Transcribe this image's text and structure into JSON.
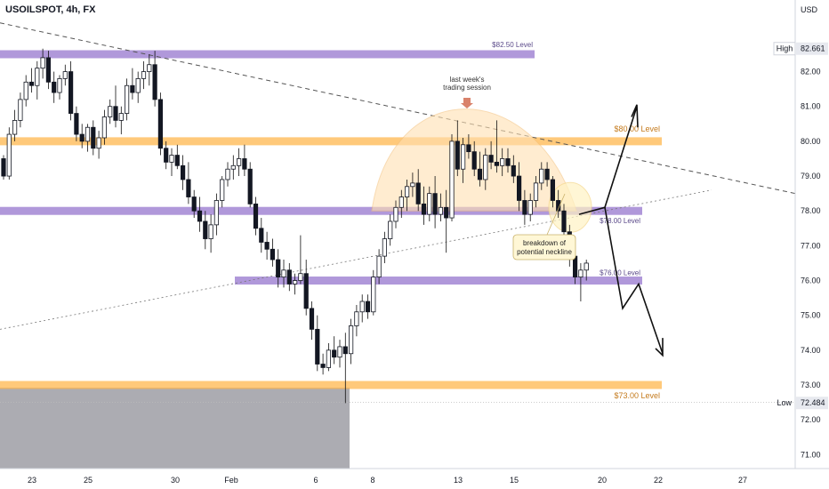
{
  "header": {
    "symbol_title": "USOILSPOT, 4h, FX"
  },
  "axis": {
    "currency": "USD"
  },
  "markers": {
    "high": {
      "label": "High",
      "value": "82.661"
    },
    "low": {
      "label": "Low",
      "value": "72.484"
    }
  },
  "levels": [
    {
      "label": "$82.50 Level",
      "value": 82.5,
      "color": "#9575cd"
    },
    {
      "label": "$80.00 Level",
      "value": 80.0,
      "color": "#ffb74d"
    },
    {
      "label": "$78.00 Level",
      "value": 78.0,
      "color": "#9575cd"
    },
    {
      "label": "$76.00 Level",
      "value": 76.0,
      "color": "#9575cd"
    },
    {
      "label": "$73.00 Level",
      "value": 73.0,
      "color": "#ffb74d"
    }
  ],
  "annotations": {
    "session_note": "last week's\ntrading session",
    "breakdown_note": "breakdown of\npotential neckline"
  },
  "chart_data": {
    "type": "candlestick",
    "title": "USOILSPOT, 4h, FX",
    "ylabel": "USD",
    "ylim": [
      70.6,
      83.7
    ],
    "y_ticks": [
      71.0,
      72.0,
      73.0,
      74.0,
      75.0,
      76.0,
      77.0,
      78.0,
      79.0,
      80.0,
      81.0,
      82.0
    ],
    "x_ticks": [
      "23",
      "25",
      "30",
      "Feb",
      "6",
      "8",
      "13",
      "15",
      "20",
      "22",
      "27"
    ],
    "grid": false,
    "series": [
      {
        "values": [
          [
            79.5,
            79.6,
            78.9,
            79.0
          ],
          [
            79.0,
            80.4,
            78.9,
            80.2
          ],
          [
            80.2,
            80.9,
            80.0,
            80.6
          ],
          [
            80.6,
            81.4,
            80.4,
            81.2
          ],
          [
            81.2,
            81.9,
            81.0,
            81.7
          ],
          [
            81.7,
            82.1,
            81.4,
            81.6
          ],
          [
            81.6,
            82.3,
            81.2,
            82.1
          ],
          [
            82.1,
            82.66,
            81.8,
            82.4
          ],
          [
            82.4,
            82.6,
            81.5,
            81.7
          ],
          [
            81.7,
            82.0,
            81.1,
            81.4
          ],
          [
            81.4,
            81.9,
            81.2,
            81.8
          ],
          [
            81.8,
            82.2,
            81.6,
            82.0
          ],
          [
            82.0,
            82.3,
            80.6,
            80.8
          ],
          [
            80.8,
            81.0,
            80.0,
            80.2
          ],
          [
            80.2,
            80.5,
            79.8,
            80.0
          ],
          [
            80.0,
            80.5,
            79.7,
            80.4
          ],
          [
            80.4,
            80.6,
            79.6,
            79.8
          ],
          [
            79.8,
            80.3,
            79.5,
            80.1
          ],
          [
            80.1,
            80.9,
            79.9,
            80.7
          ],
          [
            80.7,
            81.2,
            80.5,
            81.0
          ],
          [
            81.0,
            81.6,
            80.4,
            80.6
          ],
          [
            80.6,
            81.0,
            80.2,
            80.8
          ],
          [
            80.8,
            81.8,
            80.6,
            81.6
          ],
          [
            81.6,
            82.1,
            81.2,
            81.4
          ],
          [
            81.4,
            82.0,
            81.1,
            81.8
          ],
          [
            81.8,
            82.3,
            81.5,
            82.0
          ],
          [
            82.0,
            82.5,
            81.6,
            82.2
          ],
          [
            82.2,
            82.6,
            81.0,
            81.2
          ],
          [
            81.2,
            81.4,
            79.6,
            79.8
          ],
          [
            79.8,
            80.0,
            79.2,
            79.4
          ],
          [
            79.4,
            79.8,
            79.0,
            79.6
          ],
          [
            79.6,
            79.9,
            79.2,
            79.3
          ],
          [
            79.3,
            79.6,
            78.6,
            78.9
          ],
          [
            78.9,
            79.4,
            78.2,
            78.4
          ],
          [
            78.4,
            78.6,
            77.8,
            78.0
          ],
          [
            78.0,
            78.4,
            77.4,
            77.7
          ],
          [
            77.7,
            78.0,
            76.9,
            77.2
          ],
          [
            77.2,
            77.9,
            76.8,
            77.6
          ],
          [
            77.6,
            78.5,
            77.3,
            78.3
          ],
          [
            78.3,
            79.0,
            78.1,
            78.9
          ],
          [
            78.9,
            79.4,
            78.7,
            79.2
          ],
          [
            79.2,
            79.6,
            78.9,
            79.3
          ],
          [
            79.3,
            79.8,
            79.0,
            79.5
          ],
          [
            79.5,
            79.9,
            79.0,
            79.2
          ],
          [
            79.2,
            79.4,
            78.1,
            78.2
          ],
          [
            78.2,
            78.4,
            77.3,
            77.5
          ],
          [
            77.5,
            77.8,
            76.8,
            77.1
          ],
          [
            77.1,
            77.4,
            76.6,
            76.9
          ],
          [
            76.9,
            77.2,
            76.4,
            76.6
          ],
          [
            76.6,
            76.9,
            75.8,
            76.1
          ],
          [
            76.1,
            76.6,
            75.8,
            76.3
          ],
          [
            76.3,
            76.5,
            75.7,
            75.9
          ],
          [
            75.9,
            76.2,
            75.6,
            76.0
          ],
          [
            76.0,
            77.3,
            75.9,
            76.2
          ],
          [
            76.2,
            76.6,
            75.0,
            75.2
          ],
          [
            75.2,
            75.4,
            74.3,
            74.6
          ],
          [
            74.6,
            75.0,
            73.4,
            73.6
          ],
          [
            73.6,
            73.9,
            73.3,
            73.5
          ],
          [
            73.5,
            74.2,
            73.4,
            74.0
          ],
          [
            74.0,
            74.4,
            73.6,
            73.8
          ],
          [
            73.8,
            74.3,
            73.5,
            74.1
          ],
          [
            74.1,
            74.5,
            72.48,
            73.9
          ],
          [
            73.9,
            74.9,
            73.6,
            74.7
          ],
          [
            74.7,
            75.3,
            74.4,
            75.1
          ],
          [
            75.1,
            75.6,
            74.8,
            75.4
          ],
          [
            75.4,
            75.6,
            74.9,
            75.1
          ],
          [
            75.1,
            76.3,
            75.0,
            76.1
          ],
          [
            76.1,
            76.9,
            75.9,
            76.7
          ],
          [
            76.7,
            77.4,
            76.5,
            77.2
          ],
          [
            77.2,
            77.9,
            77.0,
            77.7
          ],
          [
            77.7,
            78.3,
            77.5,
            78.1
          ],
          [
            78.1,
            78.6,
            77.8,
            78.4
          ],
          [
            78.4,
            78.9,
            78.0,
            78.7
          ],
          [
            78.7,
            79.1,
            78.4,
            78.8
          ],
          [
            78.8,
            79.2,
            78.0,
            78.2
          ],
          [
            78.2,
            78.7,
            77.6,
            77.9
          ],
          [
            77.9,
            78.7,
            77.7,
            78.5
          ],
          [
            78.5,
            79.0,
            77.5,
            77.9
          ],
          [
            77.9,
            78.5,
            77.7,
            78.1
          ],
          [
            78.1,
            78.6,
            76.8,
            77.8
          ],
          [
            77.8,
            80.2,
            77.7,
            80.0
          ],
          [
            80.0,
            80.6,
            79.0,
            79.2
          ],
          [
            79.2,
            80.1,
            78.8,
            79.9
          ],
          [
            79.9,
            80.2,
            79.5,
            79.7
          ],
          [
            79.7,
            80.0,
            79.0,
            79.2
          ],
          [
            79.2,
            79.7,
            78.7,
            78.9
          ],
          [
            78.9,
            79.8,
            78.6,
            79.6
          ],
          [
            79.6,
            80.0,
            79.2,
            79.4
          ],
          [
            79.4,
            80.6,
            79.1,
            79.3
          ],
          [
            79.3,
            79.8,
            79.0,
            79.5
          ],
          [
            79.5,
            79.8,
            79.1,
            79.3
          ],
          [
            79.3,
            79.6,
            78.8,
            79.0
          ],
          [
            79.0,
            79.4,
            78.0,
            78.3
          ],
          [
            78.3,
            78.6,
            77.6,
            77.9
          ],
          [
            77.9,
            78.5,
            77.7,
            78.3
          ],
          [
            78.3,
            79.0,
            78.1,
            78.8
          ],
          [
            78.8,
            79.4,
            78.6,
            79.2
          ],
          [
            79.2,
            79.4,
            78.7,
            78.9
          ],
          [
            78.9,
            79.0,
            78.1,
            78.3
          ],
          [
            78.3,
            78.6,
            77.8,
            78.0
          ],
          [
            78.0,
            78.2,
            77.2,
            77.4
          ],
          [
            77.4,
            77.6,
            76.4,
            76.7
          ],
          [
            76.7,
            76.9,
            75.9,
            76.1
          ],
          [
            76.1,
            76.5,
            75.4,
            76.3
          ],
          [
            76.3,
            76.6,
            76.0,
            76.5
          ]
        ]
      }
    ]
  }
}
